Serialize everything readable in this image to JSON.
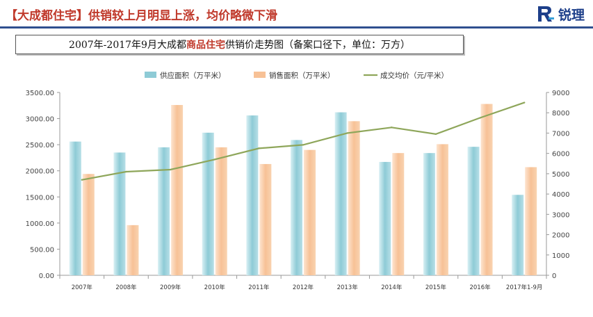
{
  "header": {
    "title": "【大成都住宅】供销较上月明显上涨，均价略微下滑",
    "logo_text": "锐理",
    "logo_icon": "rl-logo-icon"
  },
  "chart_title": {
    "prefix": "2007年-2017年9月大成都",
    "highlight": "商品住宅",
    "suffix": "供销价走势图（备案口径下，单位：万方）"
  },
  "colors": {
    "title_red": "#c0392b",
    "supply": "#8ecbd6",
    "sales": "#f7c196",
    "price": "#8ea65a",
    "header_line": "#2f4f8f"
  },
  "chart_data": {
    "type": "bar",
    "categories": [
      "2007年",
      "2008年",
      "2009年",
      "2010年",
      "2011年",
      "2012年",
      "2013年",
      "2014年",
      "2015年",
      "2016年",
      "2017年1-9月"
    ],
    "series": [
      {
        "name": "供应面积（万平米）",
        "type": "bar",
        "axis": "left",
        "values": [
          2560,
          2350,
          2450,
          2730,
          3060,
          2590,
          3120,
          2170,
          2340,
          2460,
          1540
        ]
      },
      {
        "name": "销售面积（万平米）",
        "type": "bar",
        "axis": "left",
        "values": [
          1940,
          960,
          3260,
          2450,
          2130,
          2400,
          2950,
          2340,
          2510,
          3280,
          2070
        ]
      },
      {
        "name": "成交均价（元/平米）",
        "type": "line",
        "axis": "right",
        "values": [
          4700,
          5100,
          5200,
          5700,
          6250,
          6420,
          7000,
          7280,
          6950,
          7750,
          8500
        ]
      }
    ],
    "left_axis": {
      "range": [
        0,
        3500
      ],
      "ticks": [
        "0.00",
        "500.00",
        "1000.00",
        "1500.00",
        "2000.00",
        "2500.00",
        "3000.00",
        "3500.00"
      ]
    },
    "right_axis": {
      "range": [
        0,
        9000
      ],
      "ticks": [
        "0",
        "1000",
        "2000",
        "3000",
        "4000",
        "5000",
        "6000",
        "7000",
        "8000",
        "9000"
      ]
    },
    "grid": false,
    "legend": "top"
  }
}
